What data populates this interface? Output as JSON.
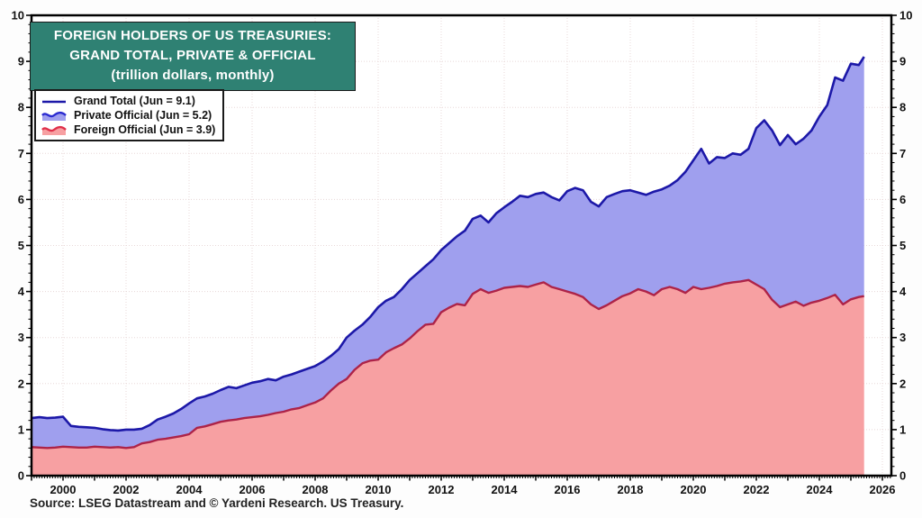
{
  "source": "Source: LSEG Datastream and © Yardeni Research. US Treasury.",
  "colors": {
    "title_bg": "#2f8173",
    "grand_total_line": "#1c18a8",
    "private_fill": "#9f9fee",
    "private_legend_line": "#2a2ad0",
    "foreign_line": "#ad2348",
    "foreign_fill": "#f7a0a2",
    "foreign_legend_line": "#e0304a",
    "grid": "#e8d8d8",
    "axis": "#000000",
    "text": "#111111"
  },
  "chart_data": {
    "type": "area",
    "title": {
      "line1": "FOREIGN HOLDERS OF US TREASURIES:",
      "line2": "GRAND TOTAL, PRIVATE & OFFICIAL",
      "line3": "(trillion dollars, monthly)"
    },
    "units": "trillion dollars",
    "frequency": "monthly",
    "legend": {
      "position": "top-left",
      "items": [
        {
          "label": "Grand Total (Jun = 9.1)",
          "swatch": "line"
        },
        {
          "label": "Private Official (Jun = 5.2)",
          "swatch": "wave-fill-blue"
        },
        {
          "label": "Foreign Official (Jun = 3.9)",
          "swatch": "wave-fill-red"
        }
      ]
    },
    "x_axis": {
      "range": [
        1999.0,
        2026.3
      ],
      "tick_label_years": [
        2000,
        2002,
        2004,
        2006,
        2008,
        2010,
        2012,
        2014,
        2016,
        2018,
        2020,
        2022,
        2024,
        2026
      ],
      "minor_ticks": "monthly"
    },
    "y_axis": {
      "range": [
        0,
        10
      ],
      "ticks": [
        0,
        1,
        2,
        3,
        4,
        5,
        6,
        7,
        8,
        9,
        10
      ],
      "minor_step": 0.2,
      "label_sides": "both"
    },
    "grid": {
      "h_lines": [
        1,
        2,
        3,
        4,
        5,
        6,
        7,
        8,
        9
      ],
      "v_lines": [
        2000,
        2002,
        2004,
        2006,
        2008,
        2010,
        2012,
        2014,
        2016,
        2018,
        2020,
        2022,
        2024,
        2026
      ],
      "style": "dotted"
    },
    "series_info": {
      "columns": [
        "year",
        "grand_total",
        "foreign_official"
      ],
      "note_private": "Private Official is the blue band = grand_total minus foreign_official",
      "latest": {
        "month": "Jun",
        "grand_total": 9.1,
        "private_official": 5.2,
        "foreign_official": 3.9
      }
    },
    "points": [
      [
        1999.0,
        1.25,
        0.62
      ],
      [
        1999.25,
        1.27,
        0.61
      ],
      [
        1999.5,
        1.25,
        0.6
      ],
      [
        1999.75,
        1.26,
        0.61
      ],
      [
        2000.0,
        1.28,
        0.63
      ],
      [
        2000.25,
        1.08,
        0.62
      ],
      [
        2000.5,
        1.06,
        0.61
      ],
      [
        2000.75,
        1.05,
        0.61
      ],
      [
        2001.0,
        1.04,
        0.63
      ],
      [
        2001.25,
        1.01,
        0.62
      ],
      [
        2001.5,
        0.99,
        0.61
      ],
      [
        2001.75,
        0.98,
        0.62
      ],
      [
        2002.0,
        1.0,
        0.6
      ],
      [
        2002.25,
        1.0,
        0.62
      ],
      [
        2002.5,
        1.02,
        0.7
      ],
      [
        2002.75,
        1.1,
        0.73
      ],
      [
        2003.0,
        1.22,
        0.78
      ],
      [
        2003.25,
        1.28,
        0.8
      ],
      [
        2003.5,
        1.35,
        0.83
      ],
      [
        2003.75,
        1.45,
        0.86
      ],
      [
        2004.0,
        1.57,
        0.9
      ],
      [
        2004.25,
        1.68,
        1.04
      ],
      [
        2004.5,
        1.72,
        1.07
      ],
      [
        2004.75,
        1.78,
        1.12
      ],
      [
        2005.0,
        1.86,
        1.17
      ],
      [
        2005.25,
        1.93,
        1.2
      ],
      [
        2005.5,
        1.9,
        1.22
      ],
      [
        2005.75,
        1.96,
        1.25
      ],
      [
        2006.0,
        2.02,
        1.27
      ],
      [
        2006.25,
        2.05,
        1.29
      ],
      [
        2006.5,
        2.1,
        1.32
      ],
      [
        2006.75,
        2.07,
        1.36
      ],
      [
        2007.0,
        2.15,
        1.39
      ],
      [
        2007.25,
        2.2,
        1.44
      ],
      [
        2007.5,
        2.26,
        1.47
      ],
      [
        2007.75,
        2.32,
        1.53
      ],
      [
        2008.0,
        2.38,
        1.59
      ],
      [
        2008.25,
        2.48,
        1.68
      ],
      [
        2008.5,
        2.6,
        1.85
      ],
      [
        2008.75,
        2.75,
        2.0
      ],
      [
        2009.0,
        3.0,
        2.1
      ],
      [
        2009.25,
        3.15,
        2.3
      ],
      [
        2009.5,
        3.28,
        2.44
      ],
      [
        2009.75,
        3.45,
        2.5
      ],
      [
        2010.0,
        3.66,
        2.52
      ],
      [
        2010.25,
        3.8,
        2.68
      ],
      [
        2010.5,
        3.88,
        2.77
      ],
      [
        2010.75,
        4.05,
        2.85
      ],
      [
        2011.0,
        4.25,
        2.98
      ],
      [
        2011.25,
        4.4,
        3.14
      ],
      [
        2011.5,
        4.55,
        3.28
      ],
      [
        2011.75,
        4.7,
        3.3
      ],
      [
        2012.0,
        4.9,
        3.55
      ],
      [
        2012.25,
        5.05,
        3.65
      ],
      [
        2012.5,
        5.2,
        3.73
      ],
      [
        2012.75,
        5.32,
        3.7
      ],
      [
        2013.0,
        5.58,
        3.95
      ],
      [
        2013.25,
        5.65,
        4.05
      ],
      [
        2013.5,
        5.5,
        3.97
      ],
      [
        2013.75,
        5.7,
        4.02
      ],
      [
        2014.0,
        5.83,
        4.08
      ],
      [
        2014.25,
        5.95,
        4.1
      ],
      [
        2014.5,
        6.08,
        4.12
      ],
      [
        2014.75,
        6.05,
        4.1
      ],
      [
        2015.0,
        6.12,
        4.15
      ],
      [
        2015.25,
        6.15,
        4.2
      ],
      [
        2015.5,
        6.05,
        4.1
      ],
      [
        2015.75,
        5.98,
        4.05
      ],
      [
        2016.0,
        6.18,
        4.0
      ],
      [
        2016.25,
        6.25,
        3.95
      ],
      [
        2016.5,
        6.2,
        3.88
      ],
      [
        2016.75,
        5.95,
        3.72
      ],
      [
        2017.0,
        5.85,
        3.62
      ],
      [
        2017.25,
        6.05,
        3.7
      ],
      [
        2017.5,
        6.12,
        3.8
      ],
      [
        2017.75,
        6.18,
        3.9
      ],
      [
        2018.0,
        6.2,
        3.96
      ],
      [
        2018.25,
        6.15,
        4.05
      ],
      [
        2018.5,
        6.1,
        4.0
      ],
      [
        2018.75,
        6.17,
        3.92
      ],
      [
        2019.0,
        6.22,
        4.05
      ],
      [
        2019.25,
        6.3,
        4.1
      ],
      [
        2019.5,
        6.42,
        4.05
      ],
      [
        2019.75,
        6.6,
        3.97
      ],
      [
        2020.0,
        6.85,
        4.1
      ],
      [
        2020.25,
        7.1,
        4.05
      ],
      [
        2020.5,
        6.78,
        4.08
      ],
      [
        2020.75,
        6.92,
        4.12
      ],
      [
        2021.0,
        6.9,
        4.17
      ],
      [
        2021.25,
        7.0,
        4.2
      ],
      [
        2021.5,
        6.97,
        4.22
      ],
      [
        2021.75,
        7.1,
        4.25
      ],
      [
        2022.0,
        7.55,
        4.15
      ],
      [
        2022.25,
        7.72,
        4.05
      ],
      [
        2022.5,
        7.5,
        3.82
      ],
      [
        2022.75,
        7.18,
        3.66
      ],
      [
        2023.0,
        7.4,
        3.72
      ],
      [
        2023.25,
        7.2,
        3.78
      ],
      [
        2023.5,
        7.32,
        3.69
      ],
      [
        2023.75,
        7.5,
        3.76
      ],
      [
        2024.0,
        7.8,
        3.8
      ],
      [
        2024.25,
        8.05,
        3.86
      ],
      [
        2024.5,
        8.65,
        3.93
      ],
      [
        2024.75,
        8.58,
        3.72
      ],
      [
        2025.0,
        8.95,
        3.83
      ],
      [
        2025.25,
        8.92,
        3.88
      ],
      [
        2025.42,
        9.1,
        3.9
      ]
    ]
  }
}
